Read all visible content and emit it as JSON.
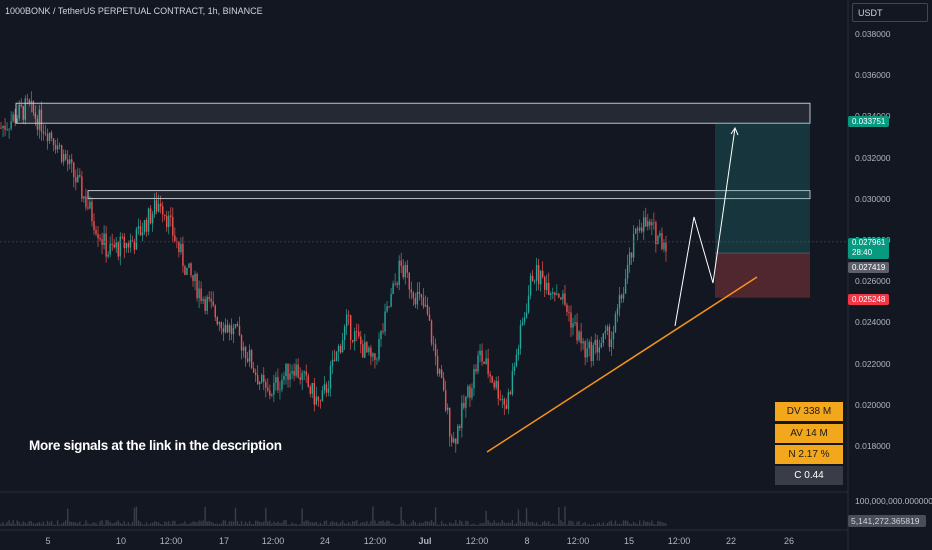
{
  "header": {
    "title": "1000BONK / TetherUS PERPETUAL CONTRACT, 1h, BINANCE",
    "currency": "USDT"
  },
  "price_axis": {
    "ticks": [
      "0.038000",
      "0.036000",
      "0.034000",
      "0.032000",
      "0.030000",
      "0.028000",
      "0.026000",
      "0.024000",
      "0.022000",
      "0.020000",
      "0.018000"
    ],
    "tags": {
      "target": "0.033751",
      "current": "0.027961",
      "countdown": "28:40",
      "entry": "0.027419",
      "stop": "0.025248"
    }
  },
  "time_axis": {
    "labels": [
      "5",
      "10",
      "12:00",
      "17",
      "12:00",
      "24",
      "12:00",
      "Jul",
      "12:00",
      "8",
      "12:00",
      "15",
      "12:00",
      "22",
      "26"
    ]
  },
  "volume_axis": {
    "scale": "100,000,000.000000",
    "current": "5,141,272.365819"
  },
  "annotation": "More signals at the link in the description",
  "stats": {
    "dv": "DV 338 M",
    "av": "AV 14 M",
    "n": "N 2.17 %",
    "c": "C  0.44"
  },
  "colors": {
    "background": "#131722",
    "up_candle": "#26a69a",
    "down_candle": "#ef5350",
    "trendline": "#f7931a",
    "target_zone": "#26a69a",
    "stop_zone": "#ef5350",
    "stat_box": "#f2a71d"
  },
  "chart_data": {
    "type": "candlestick",
    "series": [
      {
        "name": "1000BONK",
        "close_path": [
          [
            "Jun 4",
            0.0335
          ],
          [
            "Jun 5",
            0.0345
          ],
          [
            "Jun 6",
            0.033
          ],
          [
            "Jun 7",
            0.0305
          ],
          [
            "Jun 8",
            0.0275
          ],
          [
            "Jun 10",
            0.028
          ],
          [
            "Jun 11",
            0.03
          ],
          [
            "Jun 12",
            0.0265
          ],
          [
            "Jun 14",
            0.0245
          ],
          [
            "Jun 16",
            0.0232
          ],
          [
            "Jun 18",
            0.0205
          ],
          [
            "Jun 20",
            0.022
          ],
          [
            "Jun 23",
            0.02
          ],
          [
            "Jun 25",
            0.024
          ],
          [
            "Jun 27",
            0.022
          ],
          [
            "Jun 29",
            0.0268
          ],
          [
            "Jul 1",
            0.0245
          ],
          [
            "Jul 3",
            0.0182
          ],
          [
            "Jul 5",
            0.0225
          ],
          [
            "Jul 7",
            0.02
          ],
          [
            "Jul 8",
            0.0265
          ],
          [
            "Jul 11",
            0.0255
          ],
          [
            "Jul 13",
            0.0225
          ],
          [
            "Jul 15",
            0.0235
          ],
          [
            "Jul 17",
            0.029
          ],
          [
            "Jul 17 18:00",
            0.02796
          ]
        ]
      }
    ],
    "levels": {
      "resistance_zone_high": [
        0.0338,
        0.0343
      ],
      "resistance_zone_mid": [
        0.0301,
        0.0303
      ],
      "target": 0.033751,
      "entry": 0.027419,
      "stop": 0.025248
    },
    "ylim": [
      0.0175,
      0.0385
    ],
    "grid": false
  }
}
